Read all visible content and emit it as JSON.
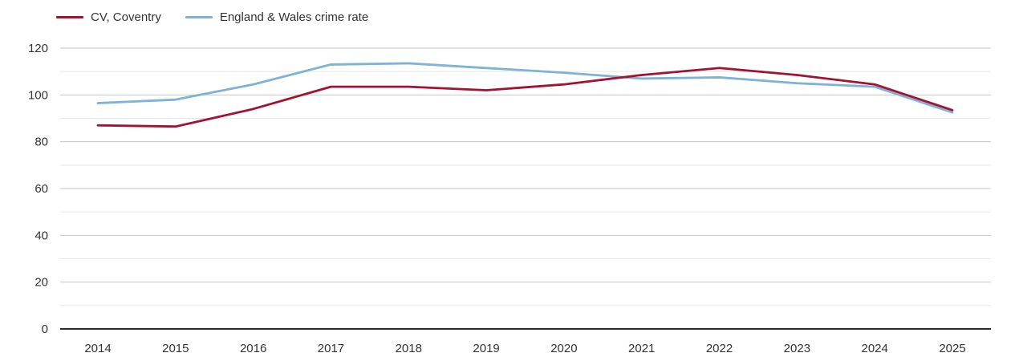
{
  "legend": {
    "items": [
      {
        "label": "CV, Coventry",
        "color": "#a3132f"
      },
      {
        "label": "England & Wales crime rate",
        "color": "#7fb2d6"
      }
    ]
  },
  "chart_data": {
    "type": "line",
    "title": "",
    "xlabel": "",
    "ylabel": "",
    "categories": [
      "2014",
      "2015",
      "2016",
      "2017",
      "2018",
      "2019",
      "2020",
      "2021",
      "2022",
      "2023",
      "2024",
      "2025"
    ],
    "series": [
      {
        "name": "CV, Coventry",
        "color": "#a3132f",
        "values": [
          87,
          86.5,
          94,
          103.5,
          103.5,
          102,
          104.5,
          108.5,
          111.5,
          108.5,
          104.5,
          93.5
        ]
      },
      {
        "name": "England & Wales crime rate",
        "color": "#7fb2d6",
        "values": [
          96.5,
          98,
          104.5,
          113,
          113.5,
          111.5,
          109.5,
          107,
          107.5,
          105,
          103.5,
          92.5
        ]
      }
    ],
    "ylim": [
      0,
      120
    ],
    "y_major_ticks": [
      0,
      20,
      40,
      60,
      80,
      100,
      120
    ],
    "y_minor_ticks": [
      10,
      30,
      50,
      70,
      90,
      110
    ],
    "grid": true,
    "legend_position": "top-left"
  },
  "style": {
    "major_grid_color": "#c6c6c6",
    "minor_grid_color": "#e8e8e8",
    "axis_color": "#2b2b2b",
    "tick_label_color": "#333333"
  }
}
